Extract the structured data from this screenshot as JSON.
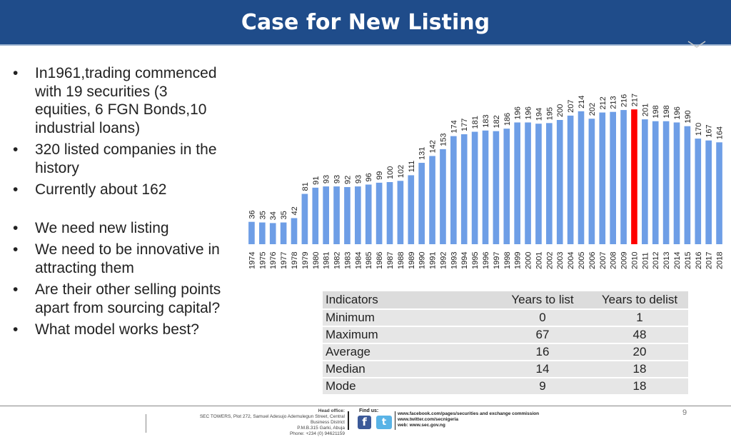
{
  "title": "Case for New Listing",
  "bullets": [
    "In1961,trading commenced with 19 securities (3 equities, 6 FGN Bonds,10 industrial loans)",
    "320 listed companies in the history",
    "Currently about 162",
    "We need new listing",
    "We need to be innovative in attracting them",
    "Are their other selling points apart from sourcing capital?",
    "What model works best?"
  ],
  "bullet_char": "•",
  "colors": {
    "title_bar": "#1f4c8a",
    "bar": "#6e9ee6",
    "bar_highlight": "#ff0000"
  },
  "chart_data": {
    "type": "bar",
    "categories": [
      "1974",
      "1975",
      "1976",
      "1977",
      "1978",
      "1979",
      "1980",
      "1981",
      "1982",
      "1983",
      "1984",
      "1985",
      "1986",
      "1987",
      "1988",
      "1989",
      "1990",
      "1991",
      "1992",
      "1993",
      "1994",
      "1995",
      "1996",
      "1997",
      "1998",
      "1999",
      "2000",
      "2001",
      "2002",
      "2003",
      "2004",
      "2005",
      "2006",
      "2007",
      "2008",
      "2009",
      "2010",
      "2011",
      "2012",
      "2013",
      "2014",
      "2015",
      "2016",
      "2017",
      "2018"
    ],
    "values": [
      36,
      35,
      34,
      35,
      42,
      81,
      91,
      93,
      93,
      92,
      93,
      96,
      99,
      100,
      102,
      111,
      131,
      142,
      153,
      174,
      177,
      181,
      183,
      182,
      186,
      196,
      196,
      194,
      195,
      200,
      207,
      214,
      202,
      212,
      213,
      216,
      217,
      201,
      198,
      198,
      196,
      190,
      170,
      167,
      164
    ],
    "highlight_category": "2010",
    "data_labels": true,
    "grid": false,
    "legend": "none"
  },
  "table": {
    "headers": [
      "Indicators",
      "Years to list",
      "Years to delist"
    ],
    "rows": [
      [
        "Minimum",
        "0",
        "1"
      ],
      [
        "Maximum",
        "67",
        "48"
      ],
      [
        "Average",
        "16",
        "20"
      ],
      [
        "Median",
        "14",
        "18"
      ],
      [
        "Mode",
        "9",
        "18"
      ]
    ]
  },
  "footer": {
    "head_office_label": "Head office:",
    "address_line1": "SEC TOWERS, Plot 272, Samuel Adesujo Ademulegun Street, Central",
    "address_line2": "Business District",
    "address_line3": "P.M.B.315 Garki, Abuja",
    "phone": "Phone: +234 (0) 94621159",
    "find_us": "Find us:",
    "facebook_icon_glyph": "f",
    "twitter_icon_glyph": "t",
    "link_facebook": "www.facebook.com/pages/securities and exchange commission",
    "link_twitter": "www.twitter.com/secnigeria",
    "link_web": "web: www.sec.gov.ng"
  },
  "page_number": "9"
}
